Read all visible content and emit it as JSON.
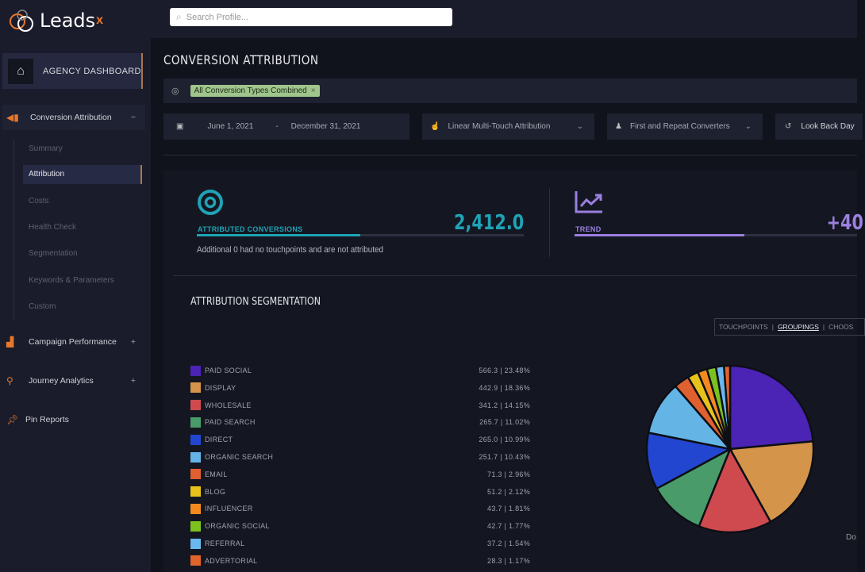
{
  "app": {
    "logo": "Leads",
    "logo_mark": "x"
  },
  "search": {
    "placeholder": "Search Profile..."
  },
  "sidebar": {
    "agency": "AGENCY DASHBOARD",
    "sections": [
      {
        "label": "Conversion Attribution",
        "toggle": "−"
      },
      {
        "label": "Campaign Performance",
        "toggle": "+"
      },
      {
        "label": "Journey Analytics",
        "toggle": "+"
      },
      {
        "label": "Pin Reports",
        "toggle": ""
      }
    ],
    "sub_items": [
      "Summary",
      "Attribution",
      "Costs",
      "Health Check",
      "Segmentation",
      "Keywords & Parameters",
      "Custom"
    ],
    "active": "Attribution"
  },
  "page": {
    "title": "CONVERSION ATTRIBUTION"
  },
  "filters": {
    "chip": "All Conversion Types Combined",
    "chip_close": "×",
    "start_date": "June 1, 2021",
    "date_sep": "-",
    "end_date": "December 31, 2021",
    "model": "Linear Multi-Touch Attribution",
    "converters": "First and Repeat Converters",
    "lookback": "Look Back Day"
  },
  "kpis": {
    "attributed": {
      "label": "ATTRIBUTED CONVERSIONS",
      "value": "2,412.0",
      "note": "Additional 0 had no touchpoints and are not attributed",
      "progress": 0.5,
      "color": "#1fa3b5"
    },
    "trend": {
      "label": "TREND",
      "value": "+40",
      "progress": 0.6,
      "color": "#9b7fe0"
    }
  },
  "segmentation": {
    "title": "ATTRIBUTION SEGMENTATION",
    "toggle": [
      "TOUCHPOINTS",
      "GROUPINGS",
      "CHOOS"
    ],
    "active_toggle": "GROUPINGS",
    "corner_text": "Do"
  },
  "chart_data": {
    "type": "pie",
    "categories": [
      "PAID SOCIAL",
      "DISPLAY",
      "WHOLESALE",
      "PAID SEARCH",
      "DIRECT",
      "ORGANIC SEARCH",
      "EMAIL",
      "BLOG",
      "INFLUENCER",
      "ORGANIC SOCIAL",
      "REFERRAL",
      "ADVERTORIAL"
    ],
    "values": [
      566.3,
      442.9,
      341.2,
      265.7,
      265.0,
      251.7,
      71.3,
      51.2,
      43.7,
      42.7,
      37.2,
      28.3
    ],
    "labels": [
      "566.3 | 23.48%",
      "442.9 | 18.36%",
      "341.2 | 14.15%",
      "265.7 | 11.02%",
      "265.0 | 10.99%",
      "251.7 | 10.43%",
      "71.3 | 2.96%",
      "51.2 | 2.12%",
      "43.7 | 1.81%",
      "42.7 | 1.77%",
      "37.2 | 1.54%",
      "28.3 | 1.17%"
    ],
    "colors": [
      "#4b23b5",
      "#d4944a",
      "#cf4a4f",
      "#4a9b6a",
      "#2346d0",
      "#64b4e6",
      "#e06030",
      "#e8c21a",
      "#f28a1e",
      "#7cc21e",
      "#6ab8ee",
      "#e0642c"
    ]
  }
}
